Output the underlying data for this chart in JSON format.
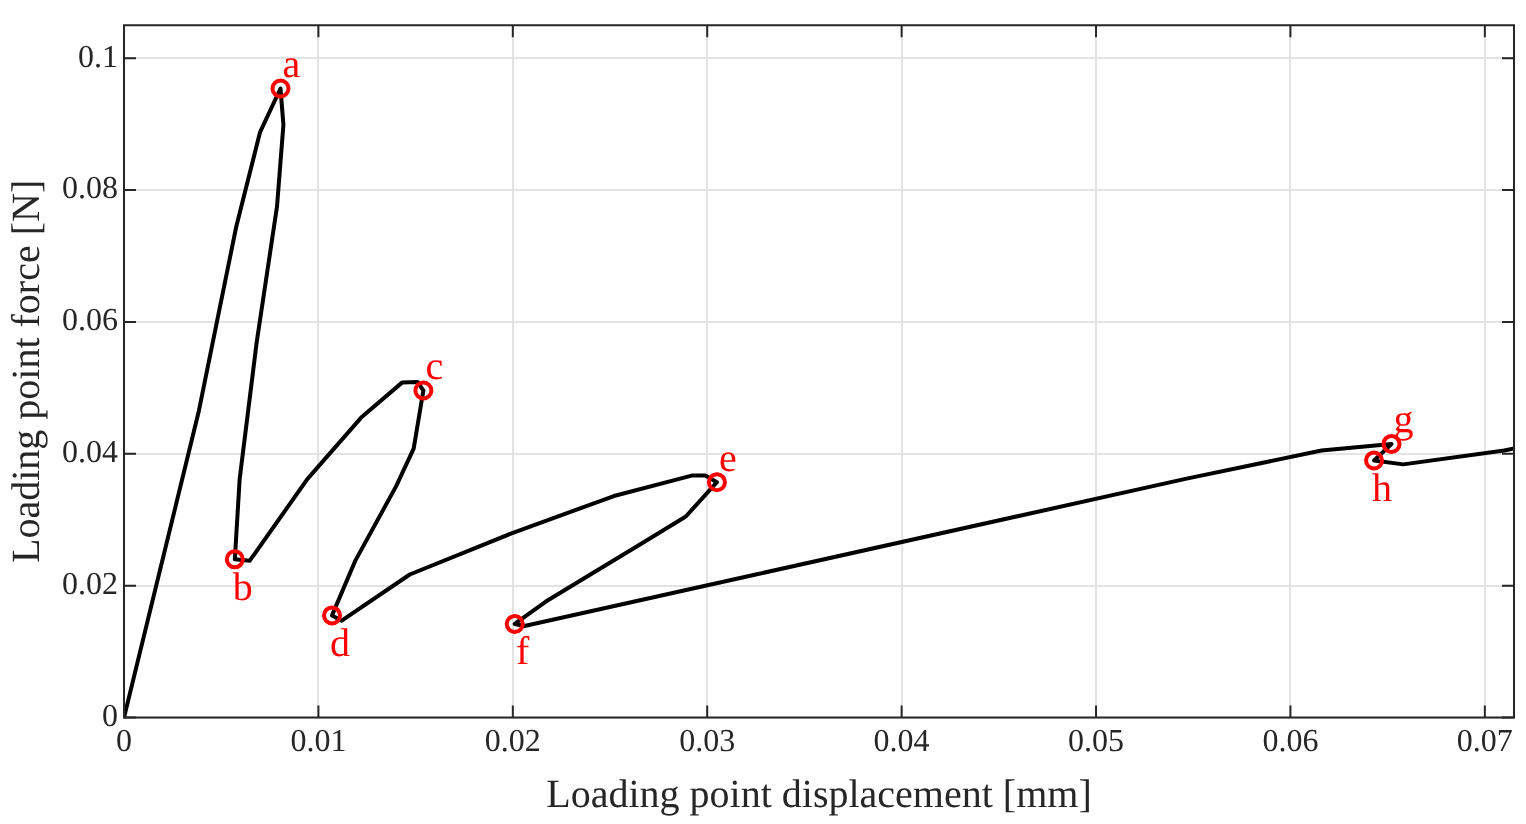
{
  "chart_data": {
    "type": "line",
    "xlabel": "Loading point displacement [mm]",
    "ylabel": "Loading point force [N]",
    "xlim": [
      0,
      0.0715
    ],
    "ylim": [
      0,
      0.105
    ],
    "xticks": [
      0,
      0.01,
      0.02,
      0.03,
      0.04,
      0.05,
      0.06,
      0.07
    ],
    "yticks": [
      0,
      0.02,
      0.04,
      0.06,
      0.08,
      0.1
    ],
    "grid": true,
    "legend": false,
    "series": [
      {
        "color": "#000000",
        "marker": "none",
        "line_style": "solid",
        "x": [
          0,
          0.00385,
          0.00577,
          0.007,
          0.00805,
          0.0082,
          0.00787,
          0.00682,
          0.00595,
          0.0057,
          0.00647,
          0.00944,
          0.0122,
          0.0143,
          0.0151,
          0.0154,
          0.0149,
          0.014,
          0.0119,
          0.0107,
          0.0112,
          0.0147,
          0.0199,
          0.0252,
          0.0292,
          0.0299,
          0.0305,
          0.0289,
          0.0269,
          0.0217,
          0.0201,
          0.0206,
          0.0325,
          0.0546,
          0.0616,
          0.0652,
          0.0643,
          0.0658,
          0.071,
          0.0715
        ],
        "values": [
          0,
          0.0465,
          0.0744,
          0.0888,
          0.0954,
          0.0899,
          0.0775,
          0.0568,
          0.0362,
          0.024,
          0.0238,
          0.0362,
          0.0455,
          0.0508,
          0.0509,
          0.0496,
          0.0408,
          0.0351,
          0.0238,
          0.0155,
          0.0147,
          0.0217,
          0.0279,
          0.0336,
          0.0367,
          0.0367,
          0.0357,
          0.0305,
          0.0269,
          0.0176,
          0.0142,
          0.0139,
          0.0217,
          0.0362,
          0.0405,
          0.0415,
          0.039,
          0.0384,
          0.0405,
          0.0408
        ]
      },
      {
        "type": "scatter",
        "color": "#ff0000",
        "marker": "circle",
        "x": [
          0.00805,
          0.0057,
          0.0154,
          0.0107,
          0.0305,
          0.0201,
          0.0652,
          0.0643
        ],
        "values": [
          0.0954,
          0.024,
          0.0496,
          0.0155,
          0.0357,
          0.0142,
          0.0415,
          0.039
        ]
      }
    ],
    "annotations": [
      {
        "text": "a",
        "x": 0.00805,
        "y": 0.0954
      },
      {
        "text": "b",
        "x": 0.0057,
        "y": 0.024
      },
      {
        "text": "c",
        "x": 0.0154,
        "y": 0.0496
      },
      {
        "text": "d",
        "x": 0.0107,
        "y": 0.0155
      },
      {
        "text": "e",
        "x": 0.0305,
        "y": 0.0357
      },
      {
        "text": "f",
        "x": 0.0201,
        "y": 0.0142
      },
      {
        "text": "g",
        "x": 0.0652,
        "y": 0.0415
      },
      {
        "text": "h",
        "x": 0.0643,
        "y": 0.039
      }
    ]
  }
}
